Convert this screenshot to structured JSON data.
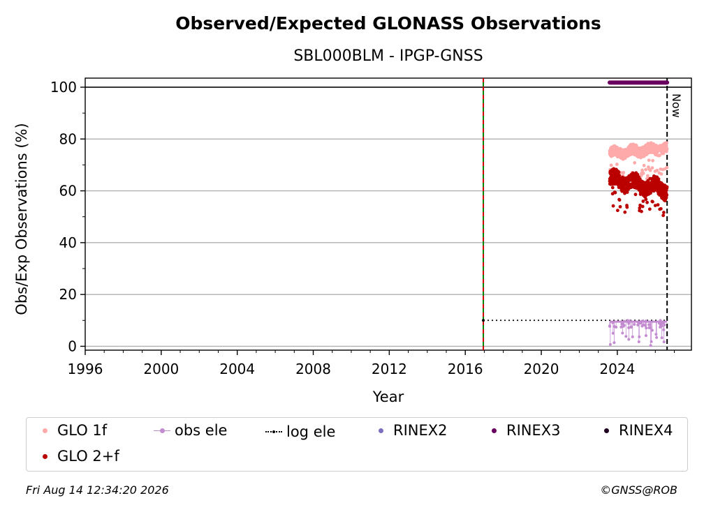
{
  "chart_data": {
    "type": "scatter",
    "title": "Observed/Expected GLONASS Observations",
    "subtitle": "SBL000BLM - IPGP-GNSS",
    "xlabel": "Year",
    "ylabel": "Obs/Exp Observations (%)",
    "xlim": [
      1996,
      2027.9
    ],
    "ylim": [
      -1.5,
      103.5
    ],
    "x_ticks": [
      "1996",
      "2000",
      "2004",
      "2008",
      "2012",
      "2016",
      "2020",
      "2024"
    ],
    "y_ticks": [
      "0",
      "20",
      "40",
      "60",
      "80",
      "100"
    ],
    "grid": "horizontal",
    "reference_line": 100,
    "vertical_markers": [
      {
        "x": 2016.95,
        "color": "#cc0000",
        "style": "dashed"
      },
      {
        "x": 2016.95,
        "color": "#008000",
        "style": "dashed"
      }
    ],
    "now_line": {
      "x": 2026.62,
      "label": "Now"
    },
    "series": [
      {
        "name": "GLO 1f",
        "color": "#ffaaaa",
        "x_range": [
          2023.6,
          2026.62
        ],
        "y_approx": [
          72,
          78
        ]
      },
      {
        "name": "GLO 2+f",
        "color": "#bb0000",
        "x_range": [
          2023.6,
          2026.62
        ],
        "y_approx": [
          53,
          68
        ]
      },
      {
        "name": "obs ele",
        "color": "#c38bd0",
        "x_range": [
          2023.6,
          2026.62
        ],
        "y_approx": [
          0,
          10
        ]
      },
      {
        "name": "log ele",
        "color": "#000000",
        "x_range": [
          2016.95,
          2026.62
        ],
        "y": 10
      },
      {
        "name": "RINEX2",
        "color": "#7b6fbf"
      },
      {
        "name": "RINEX3",
        "color": "#6a005f",
        "x_range": [
          2023.6,
          2026.62
        ],
        "y": 101.8
      },
      {
        "name": "RINEX4",
        "color": "#200020"
      }
    ]
  },
  "legend": {
    "items": [
      {
        "label": "GLO 1f"
      },
      {
        "label": "obs ele"
      },
      {
        "label": "log ele"
      },
      {
        "label": "RINEX2"
      },
      {
        "label": "RINEX3"
      },
      {
        "label": "RINEX4"
      },
      {
        "label": "GLO 2+f"
      }
    ]
  },
  "footer": {
    "timestamp": "Fri Aug 14 12:34:20 2026",
    "credit": "©GNSS@ROB"
  }
}
